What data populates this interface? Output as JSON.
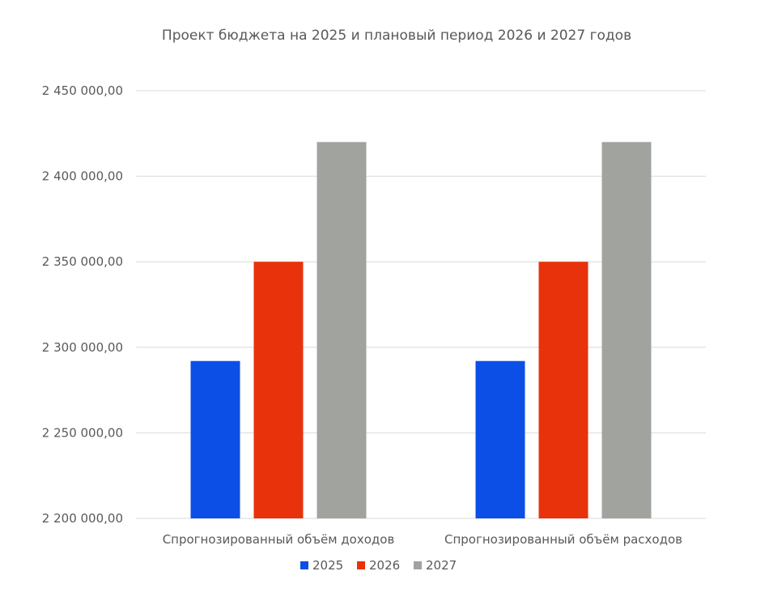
{
  "chart_data": {
    "type": "bar",
    "title": "Проект бюджета на 2025 и плановый период 2026 и 2027 годов",
    "categories": [
      "Спрогнозированный объём доходов",
      "Спрогнозированный объём расходов"
    ],
    "series": [
      {
        "name": "2025",
        "color": "#0b4fe6",
        "values": [
          2292000,
          2292000
        ]
      },
      {
        "name": "2026",
        "color": "#e8320c",
        "values": [
          2350000,
          2350000
        ]
      },
      {
        "name": "2027",
        "color": "#a1a39f",
        "values": [
          2420000,
          2420000
        ]
      }
    ],
    "yticks": [
      "2 200 000,00",
      "2 250 000,00",
      "2 300 000,00",
      "2 350 000,00",
      "2 400 000,00",
      "2 450 000,00"
    ],
    "ylim": [
      2200000,
      2450000
    ],
    "grid": true,
    "legend": "bottom",
    "xlabel": "",
    "ylabel": ""
  }
}
